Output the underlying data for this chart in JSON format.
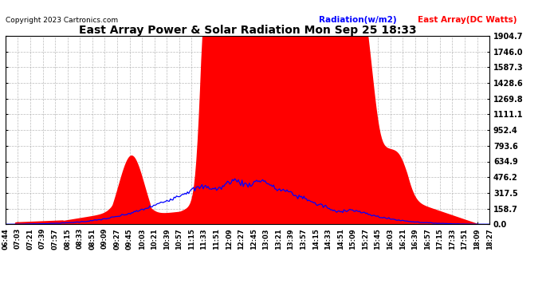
{
  "title": "East Array Power & Solar Radiation Mon Sep 25 18:33",
  "copyright": "Copyright 2023 Cartronics.com",
  "legend_radiation": "Radiation(w/m2)",
  "legend_east_array": "East Array(DC Watts)",
  "y_ticks": [
    0.0,
    158.7,
    317.5,
    476.2,
    634.9,
    793.6,
    952.4,
    1111.1,
    1269.8,
    1428.6,
    1587.3,
    1746.0,
    1904.7
  ],
  "y_max": 1904.7,
  "y_min": 0.0,
  "background_color": "#ffffff",
  "plot_bg_color": "#ffffff",
  "grid_color": "#aaaaaa",
  "bar_color": "#ff0000",
  "line_color": "#0000ff",
  "x_labels": [
    "06:44",
    "07:03",
    "07:21",
    "07:39",
    "07:57",
    "08:15",
    "08:33",
    "08:51",
    "09:09",
    "09:27",
    "09:45",
    "10:03",
    "10:21",
    "10:39",
    "10:57",
    "11:15",
    "11:33",
    "11:51",
    "12:09",
    "12:27",
    "12:45",
    "13:03",
    "13:21",
    "13:39",
    "13:57",
    "14:15",
    "14:33",
    "14:51",
    "15:09",
    "15:27",
    "15:45",
    "16:03",
    "16:21",
    "16:39",
    "16:57",
    "17:15",
    "17:33",
    "17:51",
    "18:09",
    "18:27"
  ]
}
